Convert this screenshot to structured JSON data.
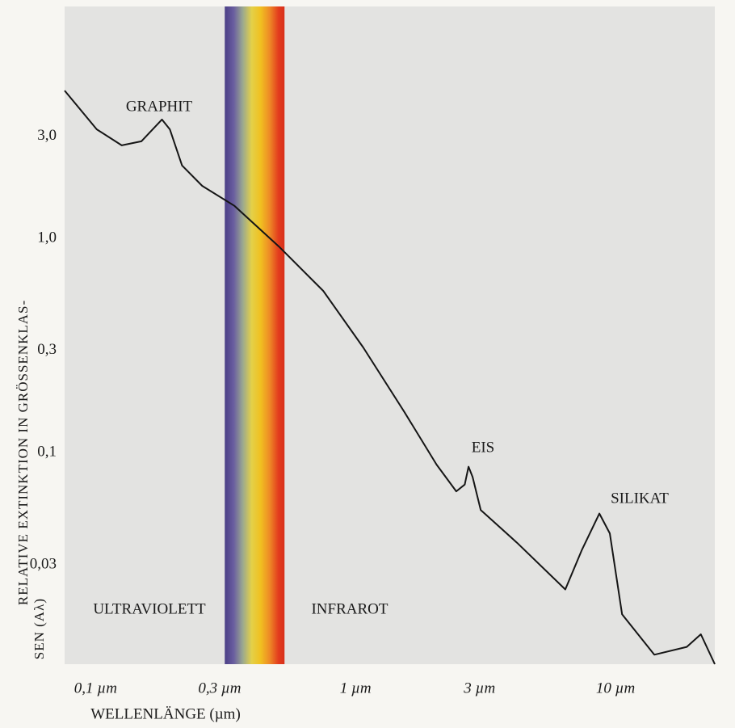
{
  "chart_data": {
    "type": "line",
    "x": [
      0.076,
      0.101,
      0.126,
      0.15,
      0.18,
      0.193,
      0.215,
      0.257,
      0.342,
      0.507,
      0.751,
      1.07,
      1.54,
      2.05,
      2.44,
      2.63,
      2.72,
      2.82,
      3.03,
      4.18,
      6.41,
      7.41,
      8.67,
      9.51,
      10.6,
      14.1,
      18.8,
      21.3,
      24.1
    ],
    "series": [
      {
        "color": "#151515",
        "values": [
          4.9,
          3.23,
          2.72,
          2.84,
          3.59,
          3.23,
          2.19,
          1.76,
          1.42,
          0.917,
          0.569,
          0.31,
          0.155,
          0.088,
          0.066,
          0.071,
          0.086,
          0.077,
          0.054,
          0.038,
          0.023,
          0.035,
          0.052,
          0.042,
          0.0176,
          0.0114,
          0.0124,
          0.0142,
          0.0103
        ]
      }
    ],
    "xlim": [
      0.076,
      24.1
    ],
    "ylim": [
      0.0103,
      12.1
    ],
    "log_x": true,
    "log_y": true,
    "xticks": [
      {
        "value": 0.1,
        "label": "0,1 µm"
      },
      {
        "value": 0.3,
        "label": "0,3 µm"
      },
      {
        "value": 1,
        "label": "1 µm"
      },
      {
        "value": 3,
        "label": "3 µm"
      },
      {
        "value": 10,
        "label": "10 µm"
      }
    ],
    "yticks": [
      {
        "value": 3,
        "label": "3,0"
      },
      {
        "value": 1,
        "label": "1,0"
      },
      {
        "value": 0.3,
        "label": "0,3"
      },
      {
        "value": 0.1,
        "label": "0,1"
      },
      {
        "value": 0.03,
        "label": "0,03"
      }
    ],
    "xlabel": "WELLENLÄNGE (µm)",
    "ylabel": [
      "RELATIVE EXTINKTION IN GRÖSSENKLAS-",
      "SEN (Aλ)"
    ],
    "visible_band": [
      0.314,
      0.533
    ],
    "annotations": [
      "GRAPHIT",
      "EIS",
      "SILIKAT",
      "ULTRAVIOLETT",
      "INFRAROT"
    ]
  }
}
